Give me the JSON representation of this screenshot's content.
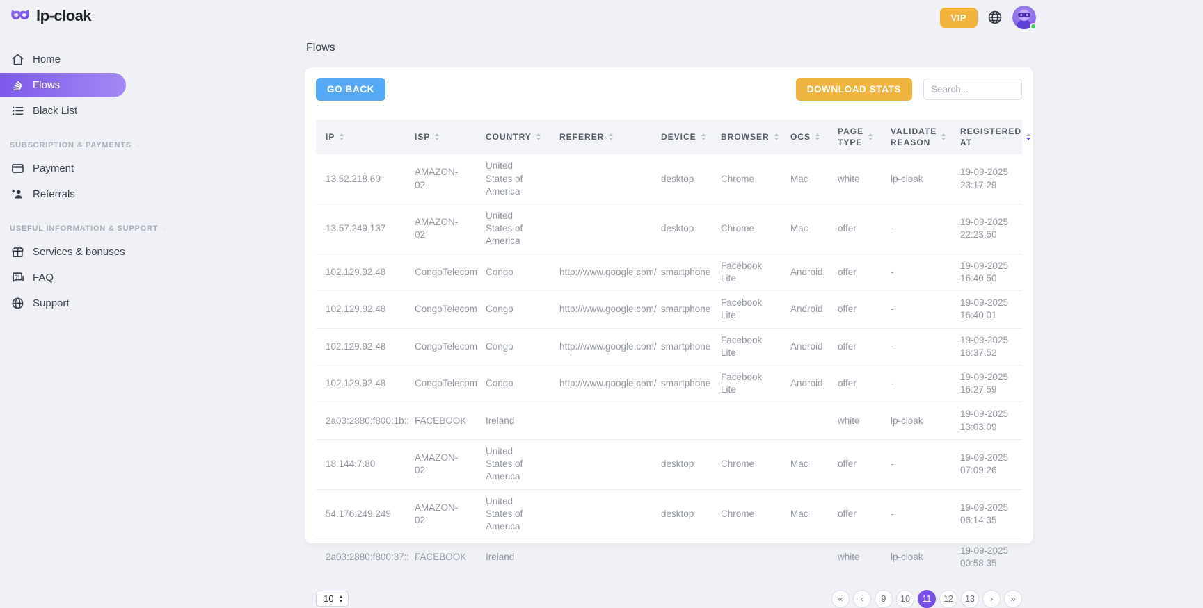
{
  "app": {
    "brand": "lp-cloak"
  },
  "topbar": {
    "vip_label": "VIP"
  },
  "sidebar": {
    "main_items": [
      {
        "label": "Home"
      },
      {
        "label": "Flows",
        "active": true
      },
      {
        "label": "Black List"
      }
    ],
    "section1": {
      "title": "SUBSCRIPTION & PAYMENTS",
      "items": [
        {
          "label": "Payment"
        },
        {
          "label": "Referrals"
        }
      ]
    },
    "section2": {
      "title": "USEFUL INFORMATION & SUPPORT",
      "items": [
        {
          "label": "Services & bonuses"
        },
        {
          "label": "FAQ"
        },
        {
          "label": "Support"
        }
      ]
    }
  },
  "page": {
    "title": "Flows"
  },
  "toolbar": {
    "go_back_label": "GO BACK",
    "download_stats_label": "DOWNLOAD STATS",
    "search_placeholder": "Search..."
  },
  "table": {
    "columns": [
      {
        "key": "ip",
        "label": "IP"
      },
      {
        "key": "isp",
        "label": "ISP"
      },
      {
        "key": "country",
        "label": "COUNTRY"
      },
      {
        "key": "referer",
        "label": "REFERER"
      },
      {
        "key": "device",
        "label": "DEVICE"
      },
      {
        "key": "browser",
        "label": "BROWSER"
      },
      {
        "key": "ocs",
        "label": "OCS"
      },
      {
        "key": "page_type",
        "label": "PAGE TYPE"
      },
      {
        "key": "validate_reason",
        "label": "VALIDATE REASON"
      },
      {
        "key": "registered_at",
        "label": "REGISTERED AT",
        "sorted": "desc"
      }
    ],
    "rows": [
      [
        "13.52.218.60",
        "AMAZON-02",
        "United States of America",
        "",
        "desktop",
        "Chrome",
        "Mac",
        "white",
        "lp-cloak",
        "19-09-2025 23:17:29"
      ],
      [
        "13.57.249.137",
        "AMAZON-02",
        "United States of America",
        "",
        "desktop",
        "Chrome",
        "Mac",
        "offer",
        "-",
        "19-09-2025 22:23:50"
      ],
      [
        "102.129.92.48",
        "CongoTelecom",
        "Congo",
        "http://www.google.com/",
        "smartphone",
        "Facebook Lite",
        "Android",
        "offer",
        "-",
        "19-09-2025 16:40:50"
      ],
      [
        "102.129.92.48",
        "CongoTelecom",
        "Congo",
        "http://www.google.com/",
        "smartphone",
        "Facebook Lite",
        "Android",
        "offer",
        "-",
        "19-09-2025 16:40:01"
      ],
      [
        "102.129.92.48",
        "CongoTelecom",
        "Congo",
        "http://www.google.com/",
        "smartphone",
        "Facebook Lite",
        "Android",
        "offer",
        "-",
        "19-09-2025 16:37:52"
      ],
      [
        "102.129.92.48",
        "CongoTelecom",
        "Congo",
        "http://www.google.com/",
        "smartphone",
        "Facebook Lite",
        "Android",
        "offer",
        "-",
        "19-09-2025 16:27:59"
      ],
      [
        "2a03:2880:f800:1b::",
        "FACEBOOK",
        "Ireland",
        "",
        "",
        "",
        "",
        "white",
        "lp-cloak",
        "19-09-2025 13:03:09"
      ],
      [
        "18.144.7.80",
        "AMAZON-02",
        "United States of America",
        "",
        "desktop",
        "Chrome",
        "Mac",
        "offer",
        "-",
        "19-09-2025 07:09:26"
      ],
      [
        "54.176.249.249",
        "AMAZON-02",
        "United States of America",
        "",
        "desktop",
        "Chrome",
        "Mac",
        "offer",
        "-",
        "19-09-2025 06:14:35"
      ],
      [
        "2a03:2880:f800:37::",
        "FACEBOOK",
        "Ireland",
        "",
        "",
        "",
        "",
        "white",
        "lp-cloak",
        "19-09-2025 00:58:35"
      ]
    ]
  },
  "footer": {
    "page_size": "10",
    "pagination": [
      {
        "label": "«",
        "type": "first"
      },
      {
        "label": "‹",
        "type": "prev"
      },
      {
        "label": "9",
        "type": "page"
      },
      {
        "label": "10",
        "type": "page"
      },
      {
        "label": "11",
        "type": "page",
        "active": true
      },
      {
        "label": "12",
        "type": "page"
      },
      {
        "label": "13",
        "type": "page"
      },
      {
        "label": "›",
        "type": "next"
      },
      {
        "label": "»",
        "type": "last"
      }
    ]
  },
  "colors": {
    "accent_purple": "#7a50ea",
    "sidebar_active_gradient_start": "#7d59ea",
    "sidebar_active_gradient_end": "#a489f4",
    "vip_orange": "#f2b33d",
    "go_back_blue": "#55a9f5",
    "download_orange": "#f0b440",
    "active_sort_indicator": "#4338e0",
    "online_green": "#3ecf63"
  }
}
